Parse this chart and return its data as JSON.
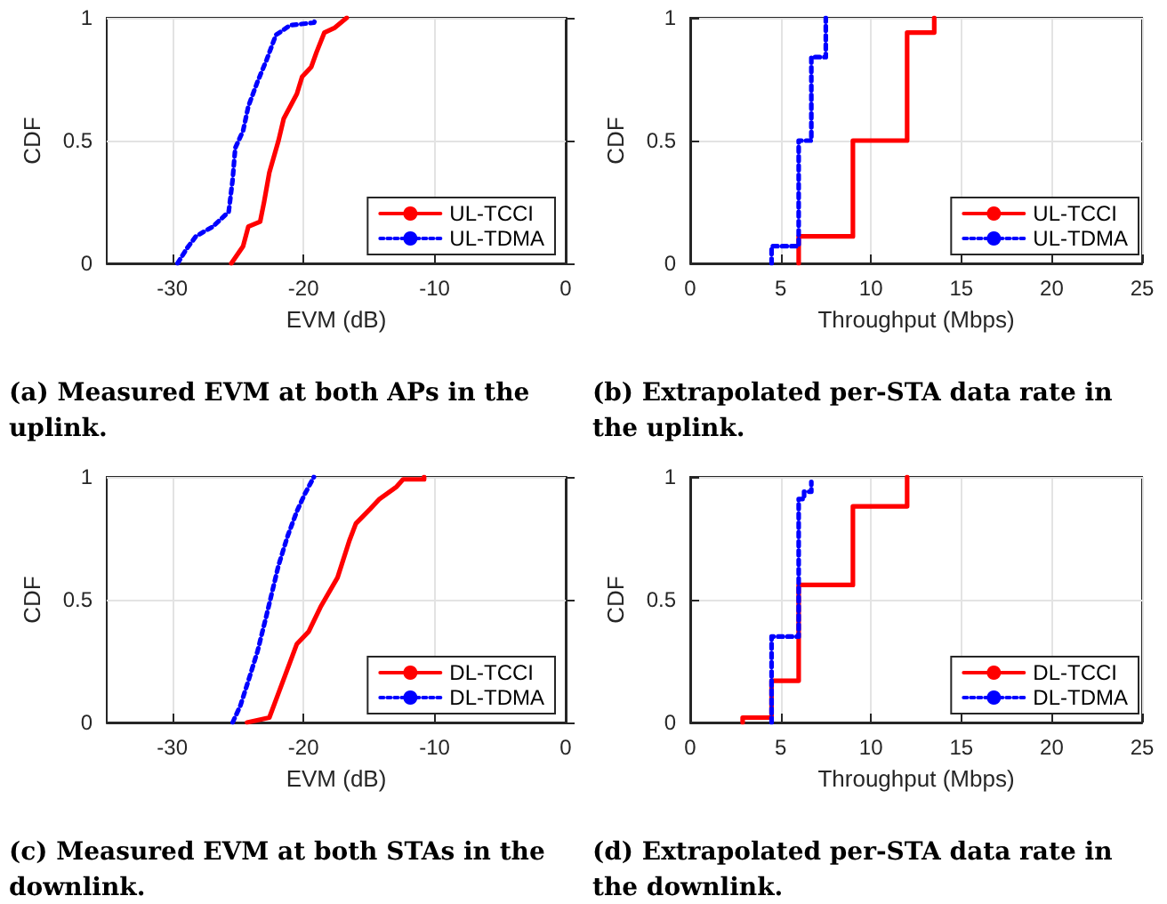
{
  "chart_data": [
    {
      "type": "line",
      "title": "(a) Measured EVM at both APs in the uplink.",
      "xlabel": "EVM (dB)",
      "ylabel": "CDF",
      "xlim": [
        -35,
        0
      ],
      "xticks": [
        -30,
        -20,
        -10,
        0
      ],
      "ylim": [
        0,
        1
      ],
      "yticks": [
        0,
        0.5,
        1
      ],
      "grid": true,
      "legend": "bottom right",
      "marker": "none",
      "series": [
        {
          "name": "UL-TCCI",
          "color": "#ff0000",
          "line_style": "solid",
          "x": [
            -25.5,
            -24.6,
            -24.2,
            -23.3,
            -23.0,
            -22.6,
            -21.9,
            -21.5,
            -20.5,
            -20.1,
            -19.4,
            -19.0,
            -18.4,
            -17.6,
            -16.7
          ],
          "values": [
            0,
            0.07,
            0.15,
            0.17,
            0.25,
            0.37,
            0.5,
            0.59,
            0.69,
            0.76,
            0.8,
            0.86,
            0.94,
            0.96,
            1
          ]
        },
        {
          "name": "UL-TDMA",
          "color": "#0000ff",
          "line_style": "dotted",
          "x": [
            -29.6,
            -28.9,
            -28.2,
            -26.9,
            -25.7,
            -25.4,
            -25.2,
            -24.6,
            -24.2,
            -23.5,
            -22.8,
            -22.1,
            -21.0,
            -19.2,
            -19.0
          ],
          "values": [
            0,
            0.06,
            0.11,
            0.15,
            0.21,
            0.34,
            0.47,
            0.54,
            0.64,
            0.74,
            0.83,
            0.93,
            0.97,
            0.98,
            1
          ]
        }
      ]
    },
    {
      "type": "step",
      "title": "(b) Extrapolated per-STA data rate in the uplink.",
      "xlabel": "Throughput (Mbps)",
      "ylabel": "CDF",
      "xlim": [
        0,
        25
      ],
      "xticks": [
        0,
        5,
        10,
        15,
        20,
        25
      ],
      "ylim": [
        0,
        1
      ],
      "yticks": [
        0,
        0.5,
        1
      ],
      "grid": true,
      "legend": "bottom right",
      "marker": "none",
      "series": [
        {
          "name": "UL-TCCI",
          "color": "#ff0000",
          "line_style": "solid",
          "x": [
            6,
            9,
            12,
            13.5,
            13.5
          ],
          "values": [
            0,
            0.11,
            0.5,
            0.94,
            1
          ]
        },
        {
          "name": "UL-TDMA",
          "color": "#0000ff",
          "line_style": "dotted",
          "x": [
            4.5,
            6,
            6.7,
            7.5,
            7.5
          ],
          "values": [
            0,
            0.07,
            0.5,
            0.84,
            1
          ]
        }
      ]
    },
    {
      "type": "line",
      "title": "(c) Measured EVM at both STAs in the downlink.",
      "xlabel": "EVM (dB)",
      "ylabel": "CDF",
      "xlim": [
        -35,
        0
      ],
      "xticks": [
        -30,
        -20,
        -10,
        0
      ],
      "ylim": [
        0,
        1
      ],
      "yticks": [
        0,
        0.5,
        1
      ],
      "grid": true,
      "legend": "bottom right",
      "marker": "none",
      "series": [
        {
          "name": "DL-TCCI",
          "color": "#ff0000",
          "line_style": "solid",
          "x": [
            -24.3,
            -22.6,
            -21.9,
            -20.5,
            -19.6,
            -18.7,
            -17.4,
            -16.5,
            -16.0,
            -14.9,
            -14.2,
            -12.9,
            -12.4,
            -10.8,
            -10.8
          ],
          "values": [
            0,
            0.02,
            0.12,
            0.32,
            0.37,
            0.47,
            0.59,
            0.74,
            0.81,
            0.87,
            0.91,
            0.96,
            0.99,
            0.99,
            1
          ]
        },
        {
          "name": "DL-TDMA",
          "color": "#0000ff",
          "line_style": "dotted",
          "x": [
            -25.4,
            -24.8,
            -24.2,
            -23.5,
            -22.8,
            -21.9,
            -21.2,
            -20.5,
            -19.9,
            -19.4,
            -19.2
          ],
          "values": [
            0,
            0.07,
            0.17,
            0.29,
            0.44,
            0.64,
            0.76,
            0.86,
            0.93,
            0.98,
            1
          ]
        }
      ]
    },
    {
      "type": "step",
      "title": "(d) Extrapolated per-STA data rate in the downlink.",
      "xlabel": "Throughput (Mbps)",
      "ylabel": "CDF",
      "xlim": [
        0,
        25
      ],
      "xticks": [
        0,
        5,
        10,
        15,
        20,
        25
      ],
      "ylim": [
        0,
        1
      ],
      "yticks": [
        0,
        0.5,
        1
      ],
      "grid": true,
      "legend": "bottom right",
      "marker": "none",
      "series": [
        {
          "name": "DL-TCCI",
          "color": "#ff0000",
          "line_style": "solid",
          "x": [
            2.9,
            4.5,
            6,
            9,
            12,
            12
          ],
          "values": [
            0,
            0.02,
            0.17,
            0.56,
            0.88,
            1
          ]
        },
        {
          "name": "DL-TDMA",
          "color": "#0000ff",
          "line_style": "dotted",
          "x": [
            4.5,
            6,
            6.3,
            6.7,
            6.7
          ],
          "values": [
            0,
            0.35,
            0.91,
            0.94,
            0.98
          ]
        }
      ]
    }
  ]
}
